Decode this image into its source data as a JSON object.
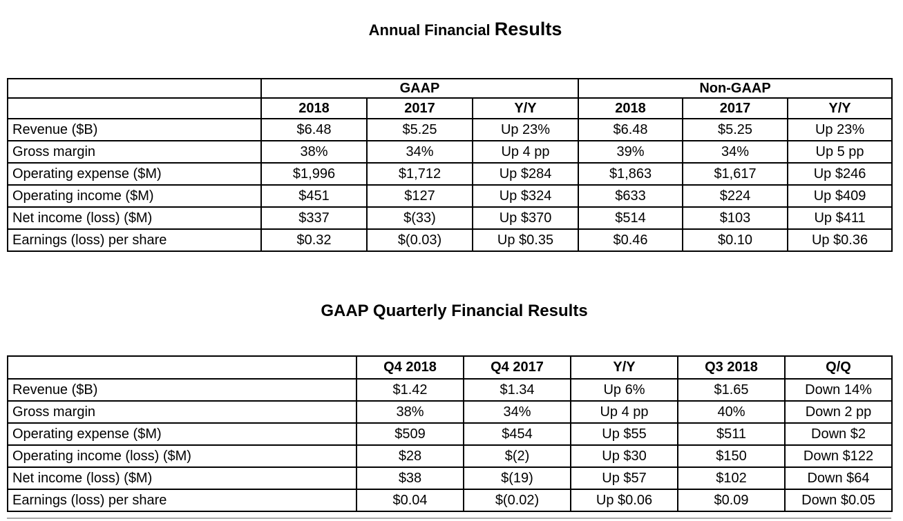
{
  "titles": {
    "annual_prefix": "Annual Financial",
    "annual_emphasis": "Results",
    "quarterly": "GAAP Quarterly Financial Results"
  },
  "colors": {
    "text": "#000000",
    "background": "#ffffff",
    "table_border": "#000000",
    "partial_next_row_line": "#a9a9a9"
  },
  "annual_table": {
    "group_headers": [
      {
        "label": "",
        "span": 1
      },
      {
        "label": "GAAP",
        "span": 3
      },
      {
        "label": "Non-GAAP",
        "span": 3
      }
    ],
    "column_headers": [
      "",
      "2018",
      "2017",
      "Y/Y",
      "2018",
      "2017",
      "Y/Y"
    ],
    "rows": [
      {
        "label": "Revenue ($B)",
        "values": [
          "$6.48",
          "$5.25",
          "Up 23%",
          "$6.48",
          "$5.25",
          "Up 23%"
        ]
      },
      {
        "label": "Gross margin",
        "values": [
          "38%",
          "34%",
          "Up 4 pp",
          "39%",
          "34%",
          "Up 5 pp"
        ]
      },
      {
        "label": "Operating expense ($M)",
        "values": [
          "$1,996",
          "$1,712",
          "Up $284",
          "$1,863",
          "$1,617",
          "Up $246"
        ]
      },
      {
        "label": "Operating income ($M)",
        "values": [
          "$451",
          "$127",
          "Up $324",
          "$633",
          "$224",
          "Up $409"
        ]
      },
      {
        "label": "Net income (loss) ($M)",
        "values": [
          "$337",
          "$(33)",
          "Up $370",
          "$514",
          "$103",
          "Up $411"
        ]
      },
      {
        "label": "Earnings (loss) per share",
        "values": [
          "$0.32",
          "$(0.03)",
          "Up $0.35",
          "$0.46",
          "$0.10",
          "Up $0.36"
        ]
      }
    ]
  },
  "quarterly_table": {
    "column_headers": [
      "",
      "Q4 2018",
      "Q4 2017",
      "Y/Y",
      "Q3 2018",
      "Q/Q"
    ],
    "rows": [
      {
        "label": "Revenue ($B)",
        "values": [
          "$1.42",
          "$1.34",
          "Up 6%",
          "$1.65",
          "Down 14%"
        ]
      },
      {
        "label": "Gross margin",
        "values": [
          "38%",
          "34%",
          "Up 4 pp",
          "40%",
          "Down 2 pp"
        ]
      },
      {
        "label": "Operating expense ($M)",
        "values": [
          "$509",
          "$454",
          "Up $55",
          "$511",
          "Down $2"
        ]
      },
      {
        "label": "Operating income (loss) ($M)",
        "values": [
          "$28",
          "$(2)",
          "Up $30",
          "$150",
          "Down $122"
        ]
      },
      {
        "label": "Net income (loss) ($M)",
        "values": [
          "$38",
          "$(19)",
          "Up $57",
          "$102",
          "Down $64"
        ]
      },
      {
        "label": "Earnings (loss) per share",
        "values": [
          "$0.04",
          "$(0.02)",
          "Up $0.06",
          "$0.09",
          "Down $0.05"
        ]
      }
    ]
  }
}
